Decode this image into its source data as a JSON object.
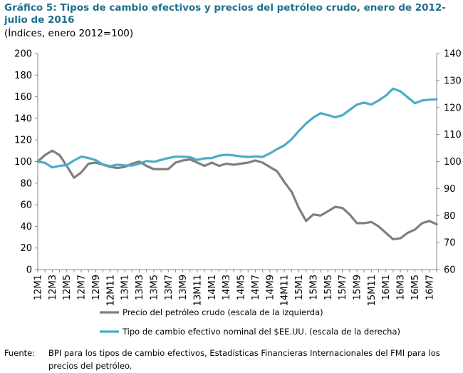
{
  "title": "Gráfico 5: Tipos de cambio efectivos y precios del petróleo crudo, enero de 2012-julio de 2016",
  "subtitle": "(Índices, enero 2012=100)",
  "source_label": "Fuente:",
  "source_text": "BPI para los tipos de cambio efectivos, Estadísticas Financieras Internacionales del FMI para los precios del petróleo.",
  "chart_data": {
    "type": "line",
    "grid": false,
    "legend_position": "bottom",
    "x_tick_labels": [
      "12M1",
      "12M3",
      "12M5",
      "12M7",
      "12M9",
      "12M11",
      "13M1",
      "13M3",
      "13M5",
      "13M7",
      "13M9",
      "13M11",
      "14M1",
      "14M3",
      "14M5",
      "14M7",
      "14M9",
      "14M11",
      "15M1",
      "15M3",
      "15M5",
      "15M7",
      "15M9",
      "15M11",
      "16M1",
      "16M3",
      "16M5",
      "16M7"
    ],
    "y_left": {
      "min": 0,
      "max": 200,
      "step": 20,
      "ticks": [
        "0",
        "20",
        "40",
        "60",
        "80",
        "100",
        "120",
        "140",
        "160",
        "180",
        "200"
      ]
    },
    "y_right": {
      "min": 60,
      "max": 140,
      "step": 10,
      "ticks": [
        "60",
        "70",
        "80",
        "90",
        "100",
        "110",
        "120",
        "130",
        "140"
      ]
    },
    "series": [
      {
        "name": "Precio del petróleo crudo (escala de la izquierda)",
        "axis": "left",
        "color": "#7f7f7f",
        "values": [
          100,
          106,
          110,
          106,
          96,
          85,
          90,
          98,
          99,
          97,
          95,
          94,
          95,
          98,
          100,
          96,
          93,
          93,
          93,
          99,
          101,
          102,
          99,
          96,
          99,
          96,
          98,
          97,
          98,
          99,
          101,
          99,
          95,
          91,
          81,
          72,
          57,
          45,
          51,
          50,
          54,
          58,
          57,
          51,
          43,
          43,
          44,
          40,
          34,
          28,
          29,
          34,
          37,
          43,
          45,
          42
        ]
      },
      {
        "name": "Tipo de cambio efectivo nominal del $EE.UU. (escala de la derecha)",
        "axis": "right",
        "color": "#4bacc6",
        "values": [
          100,
          99.5,
          97.8,
          98.4,
          98.7,
          100.4,
          101.8,
          101.3,
          100.5,
          98.9,
          98.3,
          98.8,
          98.6,
          98.5,
          99.2,
          100.2,
          99.9,
          100.6,
          101.3,
          101.8,
          101.8,
          101.6,
          100.6,
          101.2,
          101.3,
          102.2,
          102.5,
          102.3,
          101.9,
          101.7,
          101.9,
          101.7,
          103,
          104.6,
          106,
          108.3,
          111.3,
          114.1,
          116.3,
          117.9,
          117.2,
          116.4,
          117.1,
          119.1,
          121.1,
          121.8,
          121.1,
          122.6,
          124.4,
          127,
          126,
          123.8,
          121.6,
          122.6,
          122.9,
          123
        ]
      }
    ]
  }
}
